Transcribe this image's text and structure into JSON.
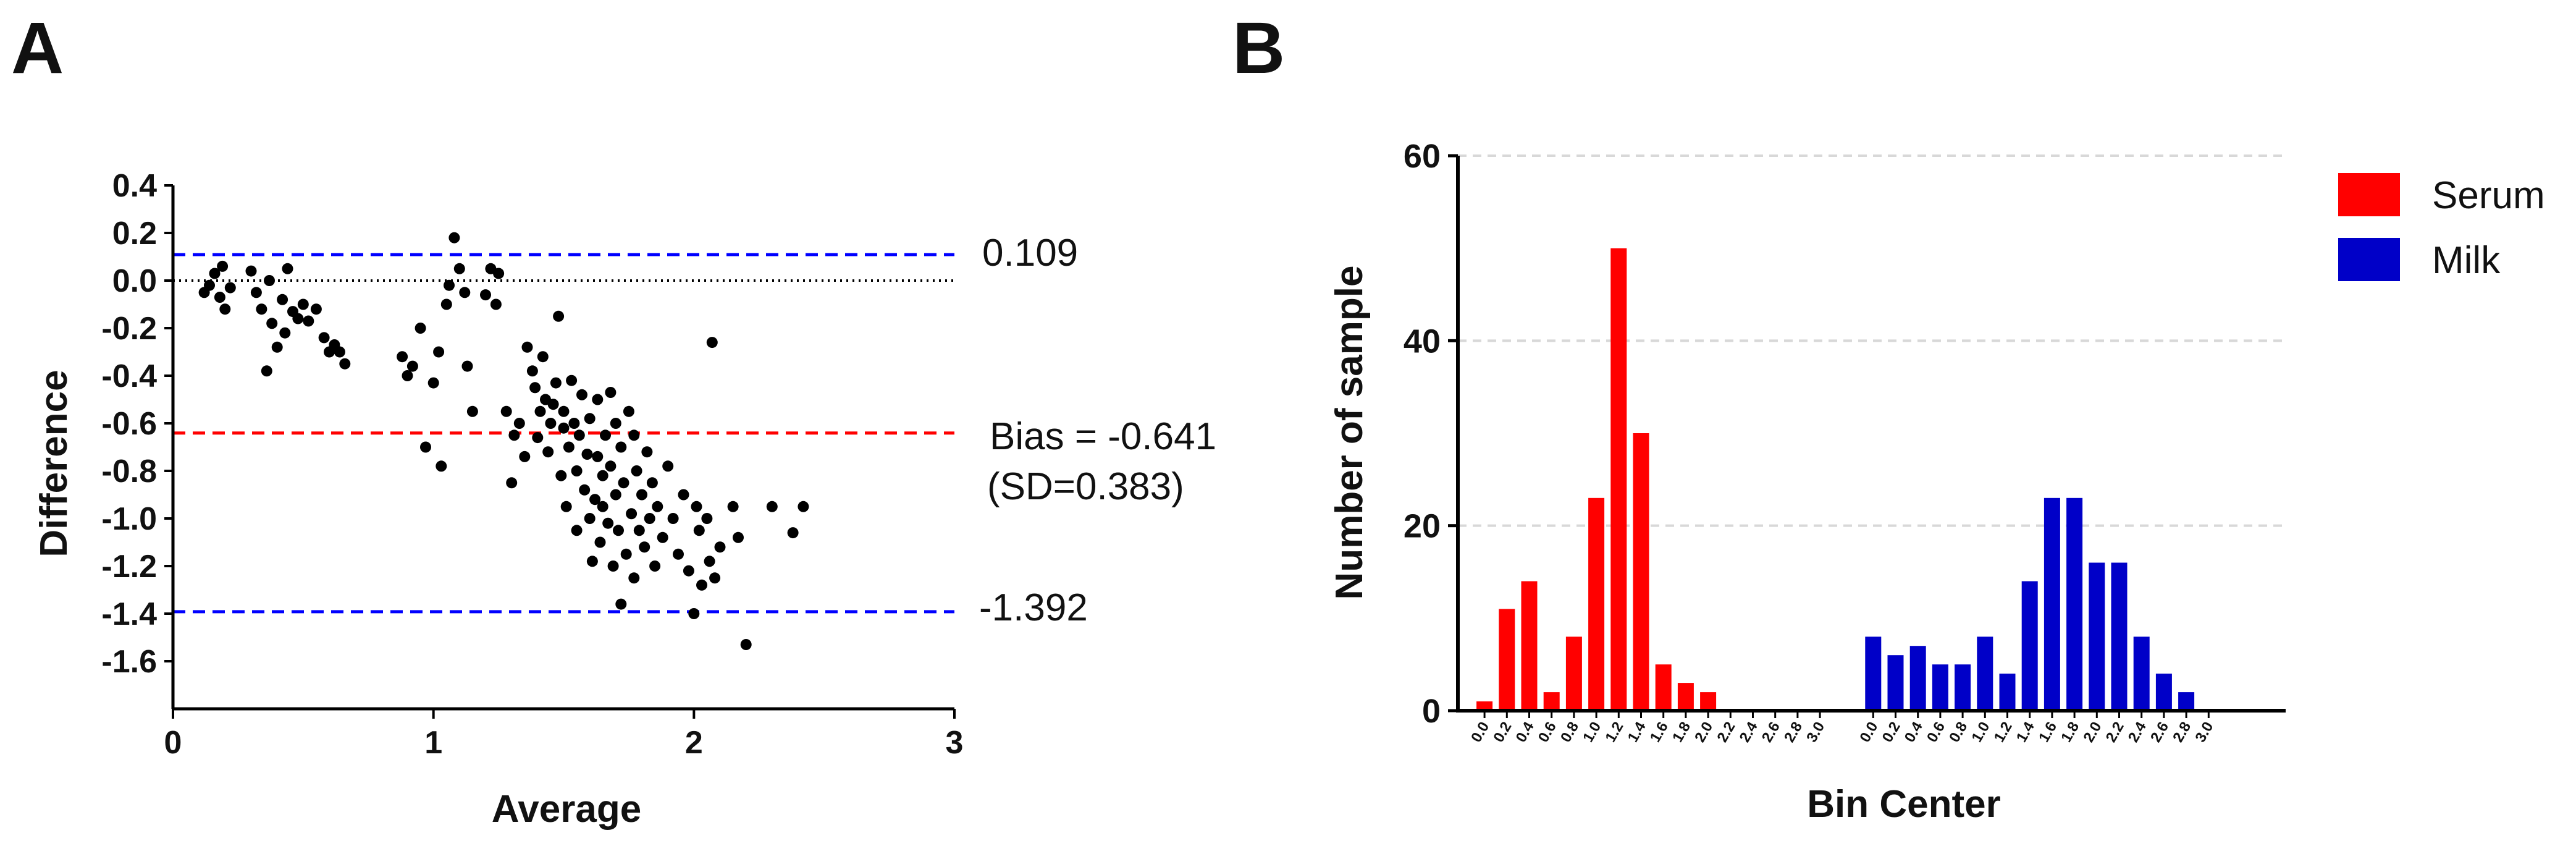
{
  "colors": {
    "serum": "#ff0000",
    "milk": "#0000c8",
    "bias_line": "#ff0000",
    "limit_line": "#0000ff",
    "points": "#000000"
  },
  "chart_data": [
    {
      "panel": "A",
      "type": "scatter",
      "xlabel": "Average",
      "ylabel": "Difference",
      "xlim": [
        0,
        3
      ],
      "ylim": [
        -1.8,
        0.4
      ],
      "xticks": [
        "0",
        "1",
        "2",
        "3"
      ],
      "yticks": [
        "0.4",
        "0.2",
        "0.0",
        "-0.2",
        "-0.4",
        "-0.6",
        "-0.8",
        "-1.0",
        "-1.2",
        "-1.4",
        "-1.6"
      ],
      "ytick_values": [
        0.4,
        0.2,
        0.0,
        -0.2,
        -0.4,
        -0.6,
        -0.8,
        -1.0,
        -1.2,
        -1.4,
        -1.6
      ],
      "zero_line": 0.0,
      "bias": -0.641,
      "upper_loa": 0.109,
      "lower_loa": -1.392,
      "annotations": {
        "upper": "0.109",
        "bias": "Bias = -0.641",
        "sd": "(SD=0.383)",
        "lower": "-1.392"
      },
      "points": [
        [
          0.12,
          -0.05
        ],
        [
          0.14,
          -0.02
        ],
        [
          0.16,
          0.03
        ],
        [
          0.18,
          -0.07
        ],
        [
          0.19,
          0.06
        ],
        [
          0.2,
          -0.12
        ],
        [
          0.22,
          -0.03
        ],
        [
          0.3,
          0.04
        ],
        [
          0.32,
          -0.05
        ],
        [
          0.34,
          -0.12
        ],
        [
          0.36,
          -0.38
        ],
        [
          0.37,
          0.0
        ],
        [
          0.38,
          -0.18
        ],
        [
          0.4,
          -0.28
        ],
        [
          0.42,
          -0.08
        ],
        [
          0.43,
          -0.22
        ],
        [
          0.44,
          0.05
        ],
        [
          0.46,
          -0.13
        ],
        [
          0.48,
          -0.16
        ],
        [
          0.5,
          -0.1
        ],
        [
          0.52,
          -0.17
        ],
        [
          0.55,
          -0.12
        ],
        [
          0.58,
          -0.24
        ],
        [
          0.6,
          -0.3
        ],
        [
          0.62,
          -0.27
        ],
        [
          0.64,
          -0.3
        ],
        [
          0.66,
          -0.35
        ],
        [
          0.88,
          -0.32
        ],
        [
          0.9,
          -0.4
        ],
        [
          0.92,
          -0.36
        ],
        [
          0.95,
          -0.2
        ],
        [
          0.97,
          -0.7
        ],
        [
          1.0,
          -0.43
        ],
        [
          1.02,
          -0.3
        ],
        [
          1.03,
          -0.78
        ],
        [
          1.05,
          -0.1
        ],
        [
          1.06,
          -0.02
        ],
        [
          1.08,
          0.18
        ],
        [
          1.1,
          0.05
        ],
        [
          1.12,
          -0.05
        ],
        [
          1.15,
          -0.55
        ],
        [
          1.13,
          -0.36
        ],
        [
          1.2,
          -0.06
        ],
        [
          1.22,
          0.05
        ],
        [
          1.24,
          -0.1
        ],
        [
          1.25,
          0.03
        ],
        [
          1.28,
          -0.55
        ],
        [
          1.3,
          -0.85
        ],
        [
          1.31,
          -0.65
        ],
        [
          1.33,
          -0.6
        ],
        [
          1.35,
          -0.74
        ],
        [
          1.36,
          -0.28
        ],
        [
          1.38,
          -0.38
        ],
        [
          1.39,
          -0.45
        ],
        [
          1.4,
          -0.66
        ],
        [
          1.41,
          -0.55
        ],
        [
          1.42,
          -0.32
        ],
        [
          1.43,
          -0.5
        ],
        [
          1.44,
          -0.72
        ],
        [
          1.45,
          -0.6
        ],
        [
          1.46,
          -0.52
        ],
        [
          1.47,
          -0.43
        ],
        [
          1.48,
          -0.15
        ],
        [
          1.49,
          -0.82
        ],
        [
          1.5,
          -0.62
        ],
        [
          1.5,
          -0.55
        ],
        [
          1.51,
          -0.95
        ],
        [
          1.52,
          -0.7
        ],
        [
          1.53,
          -0.42
        ],
        [
          1.54,
          -0.6
        ],
        [
          1.55,
          -0.8
        ],
        [
          1.55,
          -1.05
        ],
        [
          1.56,
          -0.65
        ],
        [
          1.57,
          -0.48
        ],
        [
          1.58,
          -0.88
        ],
        [
          1.59,
          -0.73
        ],
        [
          1.6,
          -1.0
        ],
        [
          1.6,
          -0.58
        ],
        [
          1.61,
          -1.18
        ],
        [
          1.62,
          -0.92
        ],
        [
          1.63,
          -0.5
        ],
        [
          1.63,
          -0.74
        ],
        [
          1.64,
          -1.1
        ],
        [
          1.65,
          -0.82
        ],
        [
          1.65,
          -0.95
        ],
        [
          1.66,
          -0.65
        ],
        [
          1.67,
          -1.02
        ],
        [
          1.68,
          -0.78
        ],
        [
          1.68,
          -0.47
        ],
        [
          1.69,
          -1.2
        ],
        [
          1.7,
          -0.9
        ],
        [
          1.7,
          -0.6
        ],
        [
          1.71,
          -1.05
        ],
        [
          1.72,
          -1.36
        ],
        [
          1.72,
          -0.7
        ],
        [
          1.73,
          -0.85
        ],
        [
          1.74,
          -1.15
        ],
        [
          1.75,
          -0.55
        ],
        [
          1.76,
          -0.98
        ],
        [
          1.77,
          -0.65
        ],
        [
          1.77,
          -1.25
        ],
        [
          1.78,
          -0.8
        ],
        [
          1.79,
          -1.05
        ],
        [
          1.8,
          -0.9
        ],
        [
          1.81,
          -1.12
        ],
        [
          1.82,
          -0.72
        ],
        [
          1.83,
          -1.0
        ],
        [
          1.84,
          -0.85
        ],
        [
          1.85,
          -1.2
        ],
        [
          1.86,
          -0.95
        ],
        [
          1.88,
          -1.08
        ],
        [
          1.9,
          -0.78
        ],
        [
          1.92,
          -1.0
        ],
        [
          1.94,
          -1.15
        ],
        [
          1.96,
          -0.9
        ],
        [
          1.98,
          -1.22
        ],
        [
          2.0,
          -1.4
        ],
        [
          2.01,
          -0.95
        ],
        [
          2.02,
          -1.05
        ],
        [
          2.03,
          -1.28
        ],
        [
          2.05,
          -1.0
        ],
        [
          2.06,
          -1.18
        ],
        [
          2.07,
          -0.26
        ],
        [
          2.08,
          -1.25
        ],
        [
          2.1,
          -1.12
        ],
        [
          2.15,
          -0.95
        ],
        [
          2.17,
          -1.08
        ],
        [
          2.2,
          -1.53
        ],
        [
          2.3,
          -0.95
        ],
        [
          2.38,
          -1.06
        ],
        [
          2.42,
          -0.95
        ]
      ]
    },
    {
      "panel": "B",
      "type": "bar",
      "xlabel": "Bin Center",
      "ylabel": "Number of sample",
      "ylim": [
        0,
        60
      ],
      "yticks": [
        "0",
        "20",
        "40",
        "60"
      ],
      "ytick_values": [
        0,
        20,
        40,
        60
      ],
      "grid": true,
      "legend_position": "top-right",
      "categories": [
        "0.0",
        "0.2",
        "0.4",
        "0.6",
        "0.8",
        "1.0",
        "1.2",
        "1.4",
        "1.6",
        "1.8",
        "2.0",
        "2.2",
        "2.4",
        "2.6",
        "2.8",
        "3.0"
      ],
      "series": [
        {
          "name": "Serum",
          "values": [
            1,
            11,
            14,
            2,
            8,
            23,
            50,
            30,
            5,
            3,
            2,
            0,
            0,
            0,
            0,
            0
          ]
        },
        {
          "name": "Milk",
          "values": [
            8,
            6,
            7,
            5,
            5,
            8,
            4,
            14,
            23,
            23,
            16,
            16,
            8,
            4,
            2,
            0
          ]
        }
      ]
    }
  ]
}
